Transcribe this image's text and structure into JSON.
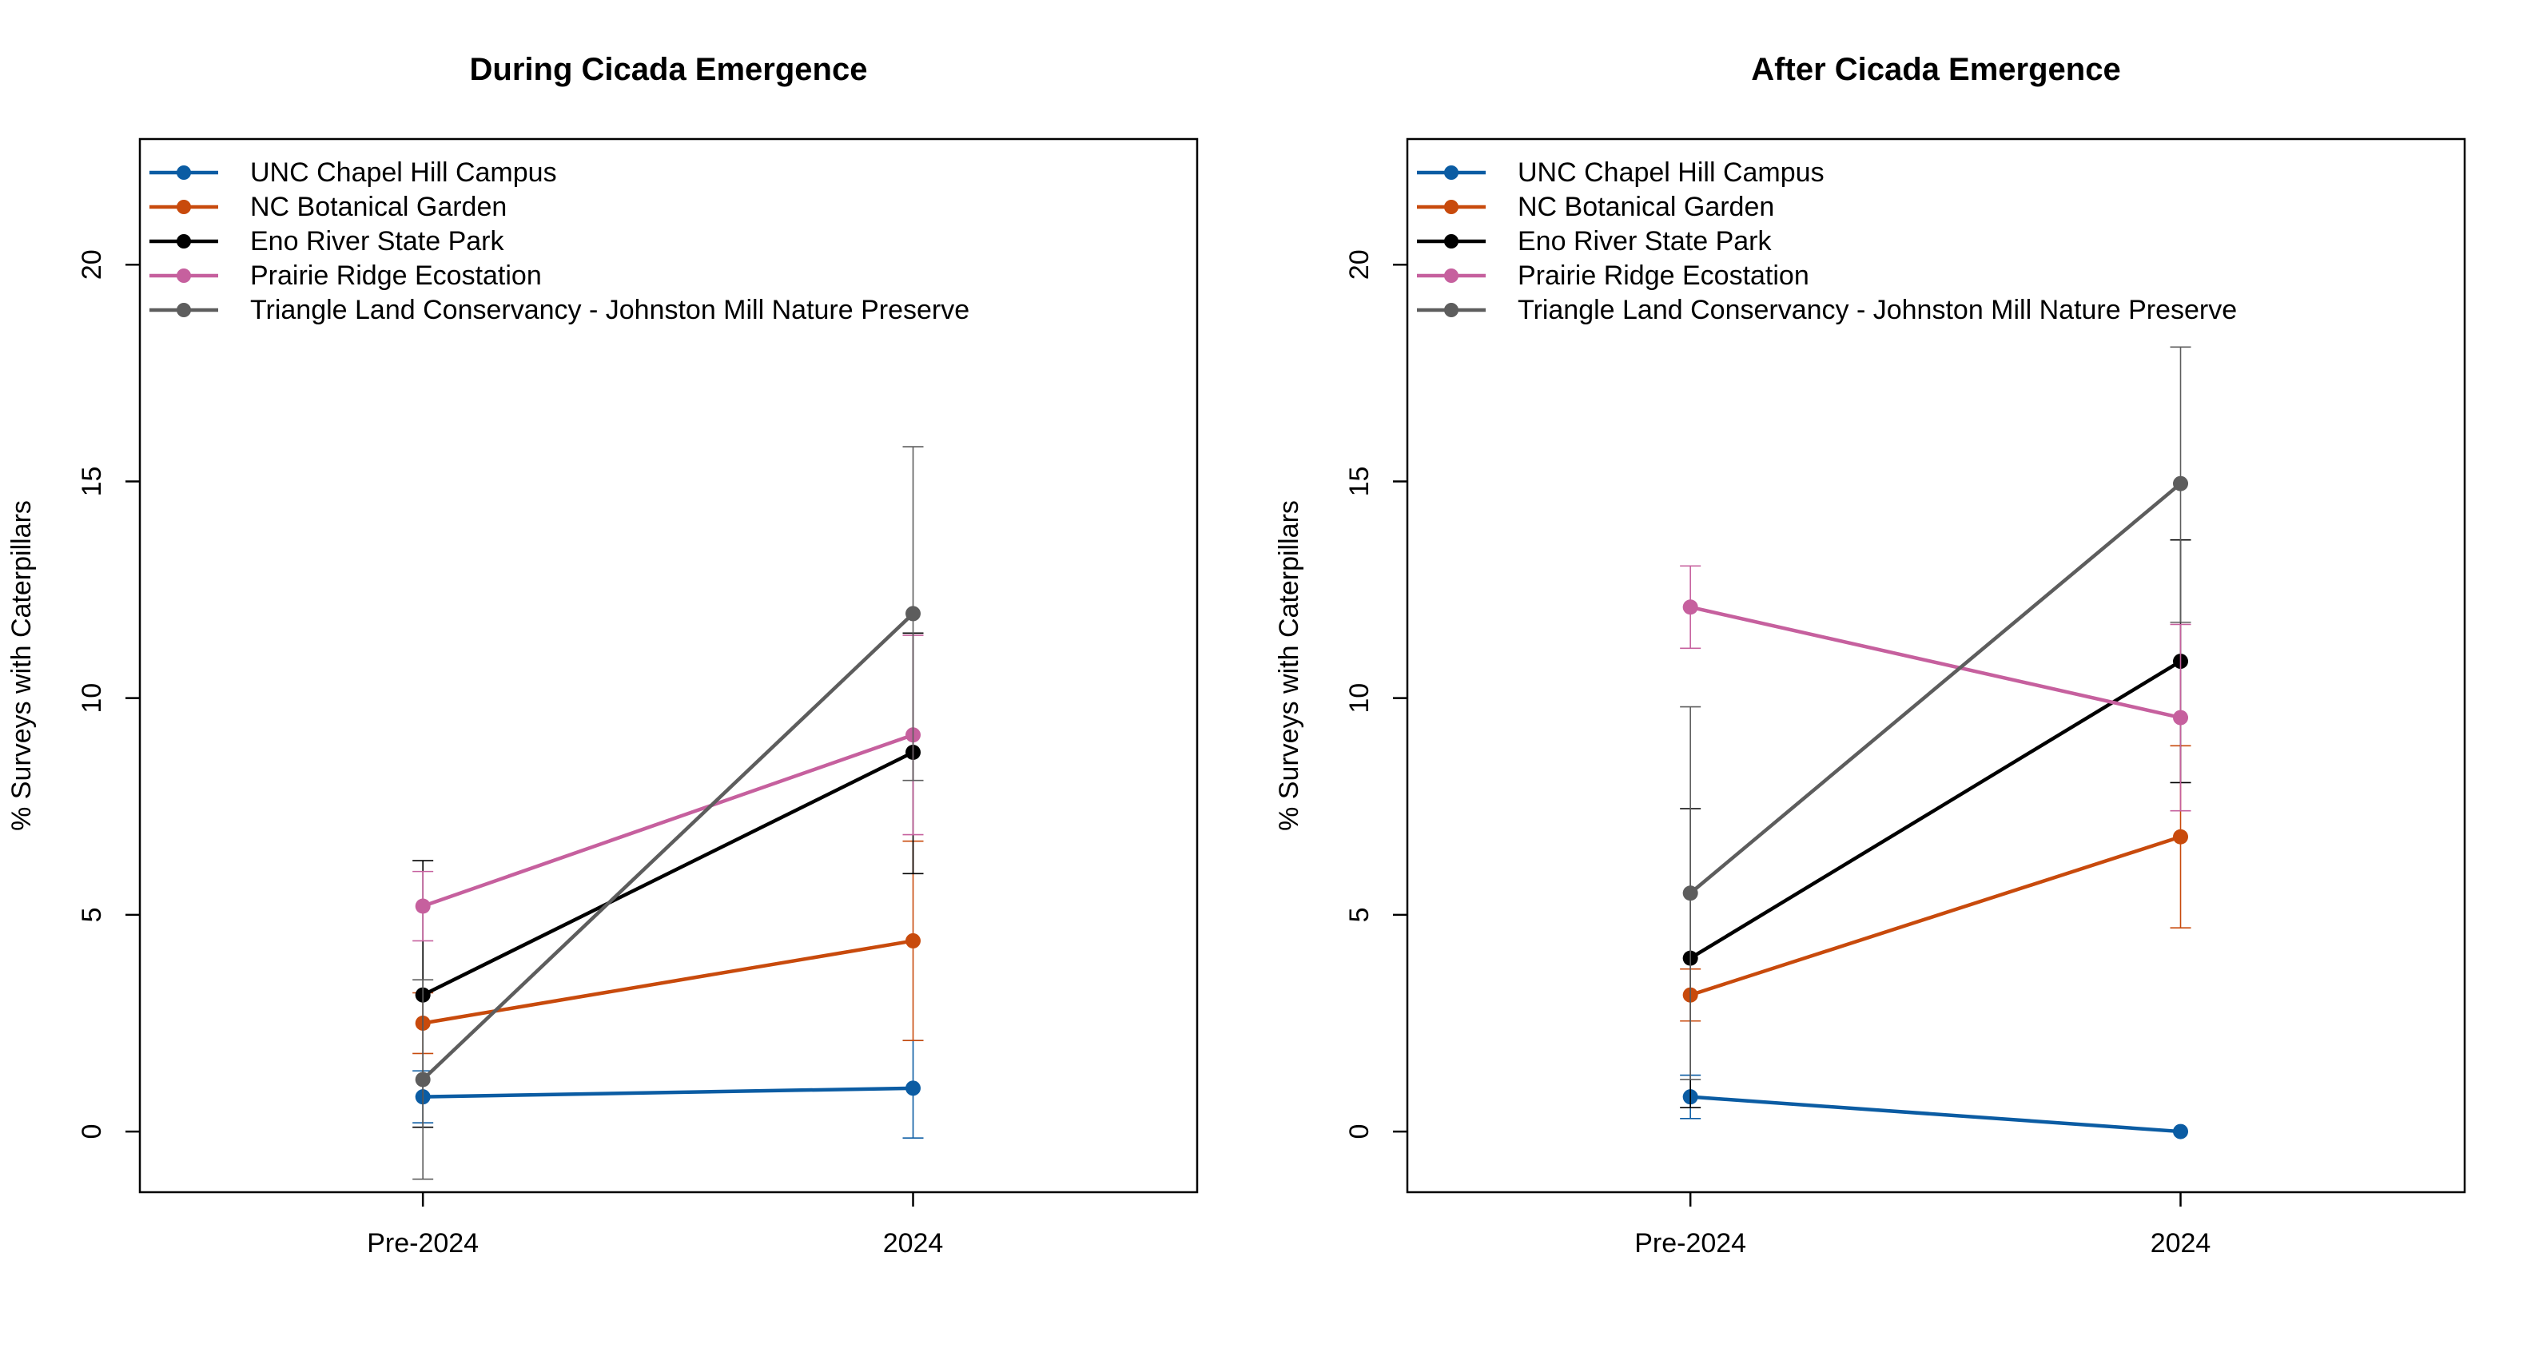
{
  "chart_data": [
    {
      "type": "line",
      "title": "During Cicada Emergence",
      "ylabel": "% Surveys with Caterpillars",
      "xlabel": "",
      "categories": [
        "Pre-2024",
        "2024"
      ],
      "ylim": [
        -1.4,
        22.9
      ],
      "yticks": [
        0,
        5,
        10,
        15,
        20
      ],
      "grid": false,
      "legend_position": "top-left",
      "series": [
        {
          "name": "UNC Chapel Hill Campus",
          "color": "#0b5ca3",
          "values": [
            0.8,
            1.0
          ],
          "err_low": [
            0.2,
            -0.15
          ],
          "err_high": [
            1.4,
            2.1
          ]
        },
        {
          "name": "NC Botanical Garden",
          "color": "#c84a0c",
          "values": [
            2.5,
            4.4
          ],
          "err_low": [
            1.8,
            2.1
          ],
          "err_high": [
            3.2,
            6.7
          ]
        },
        {
          "name": "Eno River State Park",
          "color": "#000000",
          "values": [
            3.15,
            8.75
          ],
          "err_low": [
            0.1,
            5.95
          ],
          "err_high": [
            6.25,
            11.5
          ]
        },
        {
          "name": "Prairie Ridge Ecostation",
          "color": "#c6609e",
          "values": [
            5.2,
            9.15
          ],
          "err_low": [
            4.4,
            6.85
          ],
          "err_high": [
            6.0,
            11.45
          ]
        },
        {
          "name": "Triangle Land Conservancy - Johnston Mill Nature Preserve",
          "color": "#5d5d5d",
          "values": [
            1.2,
            11.95
          ],
          "err_low": [
            -1.1,
            8.1
          ],
          "err_high": [
            3.5,
            15.8
          ]
        }
      ]
    },
    {
      "type": "line",
      "title": "After Cicada Emergence",
      "ylabel": "% Surveys with Caterpillars",
      "xlabel": "",
      "categories": [
        "Pre-2024",
        "2024"
      ],
      "ylim": [
        -1.4,
        22.9
      ],
      "yticks": [
        0,
        5,
        10,
        15,
        20
      ],
      "grid": false,
      "legend_position": "top-left",
      "series": [
        {
          "name": "UNC Chapel Hill Campus",
          "color": "#0b5ca3",
          "values": [
            0.8,
            0.0
          ],
          "err_low": [
            0.3,
            0.0
          ],
          "err_high": [
            1.3,
            0.0
          ]
        },
        {
          "name": "NC Botanical Garden",
          "color": "#c84a0c",
          "values": [
            3.15,
            6.8
          ],
          "err_low": [
            2.55,
            4.7
          ],
          "err_high": [
            3.75,
            8.9
          ]
        },
        {
          "name": "Eno River State Park",
          "color": "#000000",
          "values": [
            4.0,
            10.85
          ],
          "err_low": [
            0.55,
            8.05
          ],
          "err_high": [
            7.45,
            13.65
          ]
        },
        {
          "name": "Prairie Ridge Ecostation",
          "color": "#c6609e",
          "values": [
            12.1,
            9.55
          ],
          "err_low": [
            11.15,
            7.4
          ],
          "err_high": [
            13.05,
            11.7
          ]
        },
        {
          "name": "Triangle Land Conservancy - Johnston Mill Nature Preserve",
          "color": "#5d5d5d",
          "values": [
            5.5,
            14.95
          ],
          "err_low": [
            1.2,
            11.75
          ],
          "err_high": [
            9.8,
            18.1
          ]
        }
      ]
    }
  ]
}
